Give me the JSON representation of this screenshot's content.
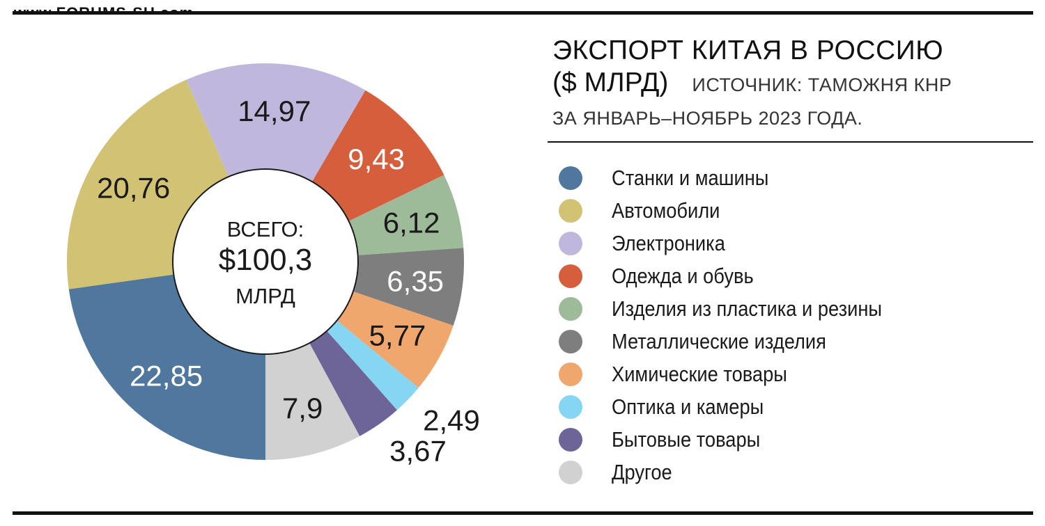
{
  "watermark": "www.FORUMS-SU.com",
  "title": "ЭКСПОРТ КИТАЯ В РОССИЮ",
  "unit": "($ МЛРД)",
  "source": "ИСТОЧНИК: ТАМОЖНЯ КНР",
  "period": "ЗА ЯНВАРЬ–НОЯБРЬ 2023 ГОДА.",
  "center": {
    "line1": "ВСЕГО:",
    "line2": "$100,3",
    "line3": "МЛРД"
  },
  "chart_data": {
    "type": "pie",
    "title": "ЭКСПОРТ КИТАЯ В РОССИЮ",
    "total": 100.3,
    "legend_position": "right",
    "slices": [
      {
        "name": "Станки и машины",
        "value": 22.85,
        "label": "22,85",
        "color": "#50789f",
        "label_color": "#ffffff"
      },
      {
        "name": "Автомобили",
        "value": 20.76,
        "label": "20,76",
        "color": "#d2c274",
        "label_color": "#1a1a1a"
      },
      {
        "name": "Электроника",
        "value": 14.97,
        "label": "14,97",
        "color": "#c0b7dc",
        "label_color": "#1a1a1a"
      },
      {
        "name": "Одежда и обувь",
        "value": 9.43,
        "label": "9,43",
        "color": "#d55e3d",
        "label_color": "#ffffff"
      },
      {
        "name": "Изделия из пластика и резины",
        "value": 6.12,
        "label": "6,12",
        "color": "#9dbb98",
        "label_color": "#1a1a1a"
      },
      {
        "name": "Металлические изделия",
        "value": 6.35,
        "label": "6,35",
        "color": "#7f7e7e",
        "label_color": "#ffffff"
      },
      {
        "name": "Химические товары",
        "value": 5.77,
        "label": "5,77",
        "color": "#efa76e",
        "label_color": "#1a1a1a"
      },
      {
        "name": "Оптика и камеры",
        "value": 2.49,
        "label": "2,49",
        "color": "#85d6f3",
        "label_color": "#1a1a1a"
      },
      {
        "name": "Бытовые товары",
        "value": 3.67,
        "label": "3,67",
        "color": "#6d6498",
        "label_color": "#1a1a1a"
      },
      {
        "name": "Другое",
        "value": 7.9,
        "label": "7,9",
        "color": "#d1d1d1",
        "label_color": "#1a1a1a"
      }
    ]
  }
}
